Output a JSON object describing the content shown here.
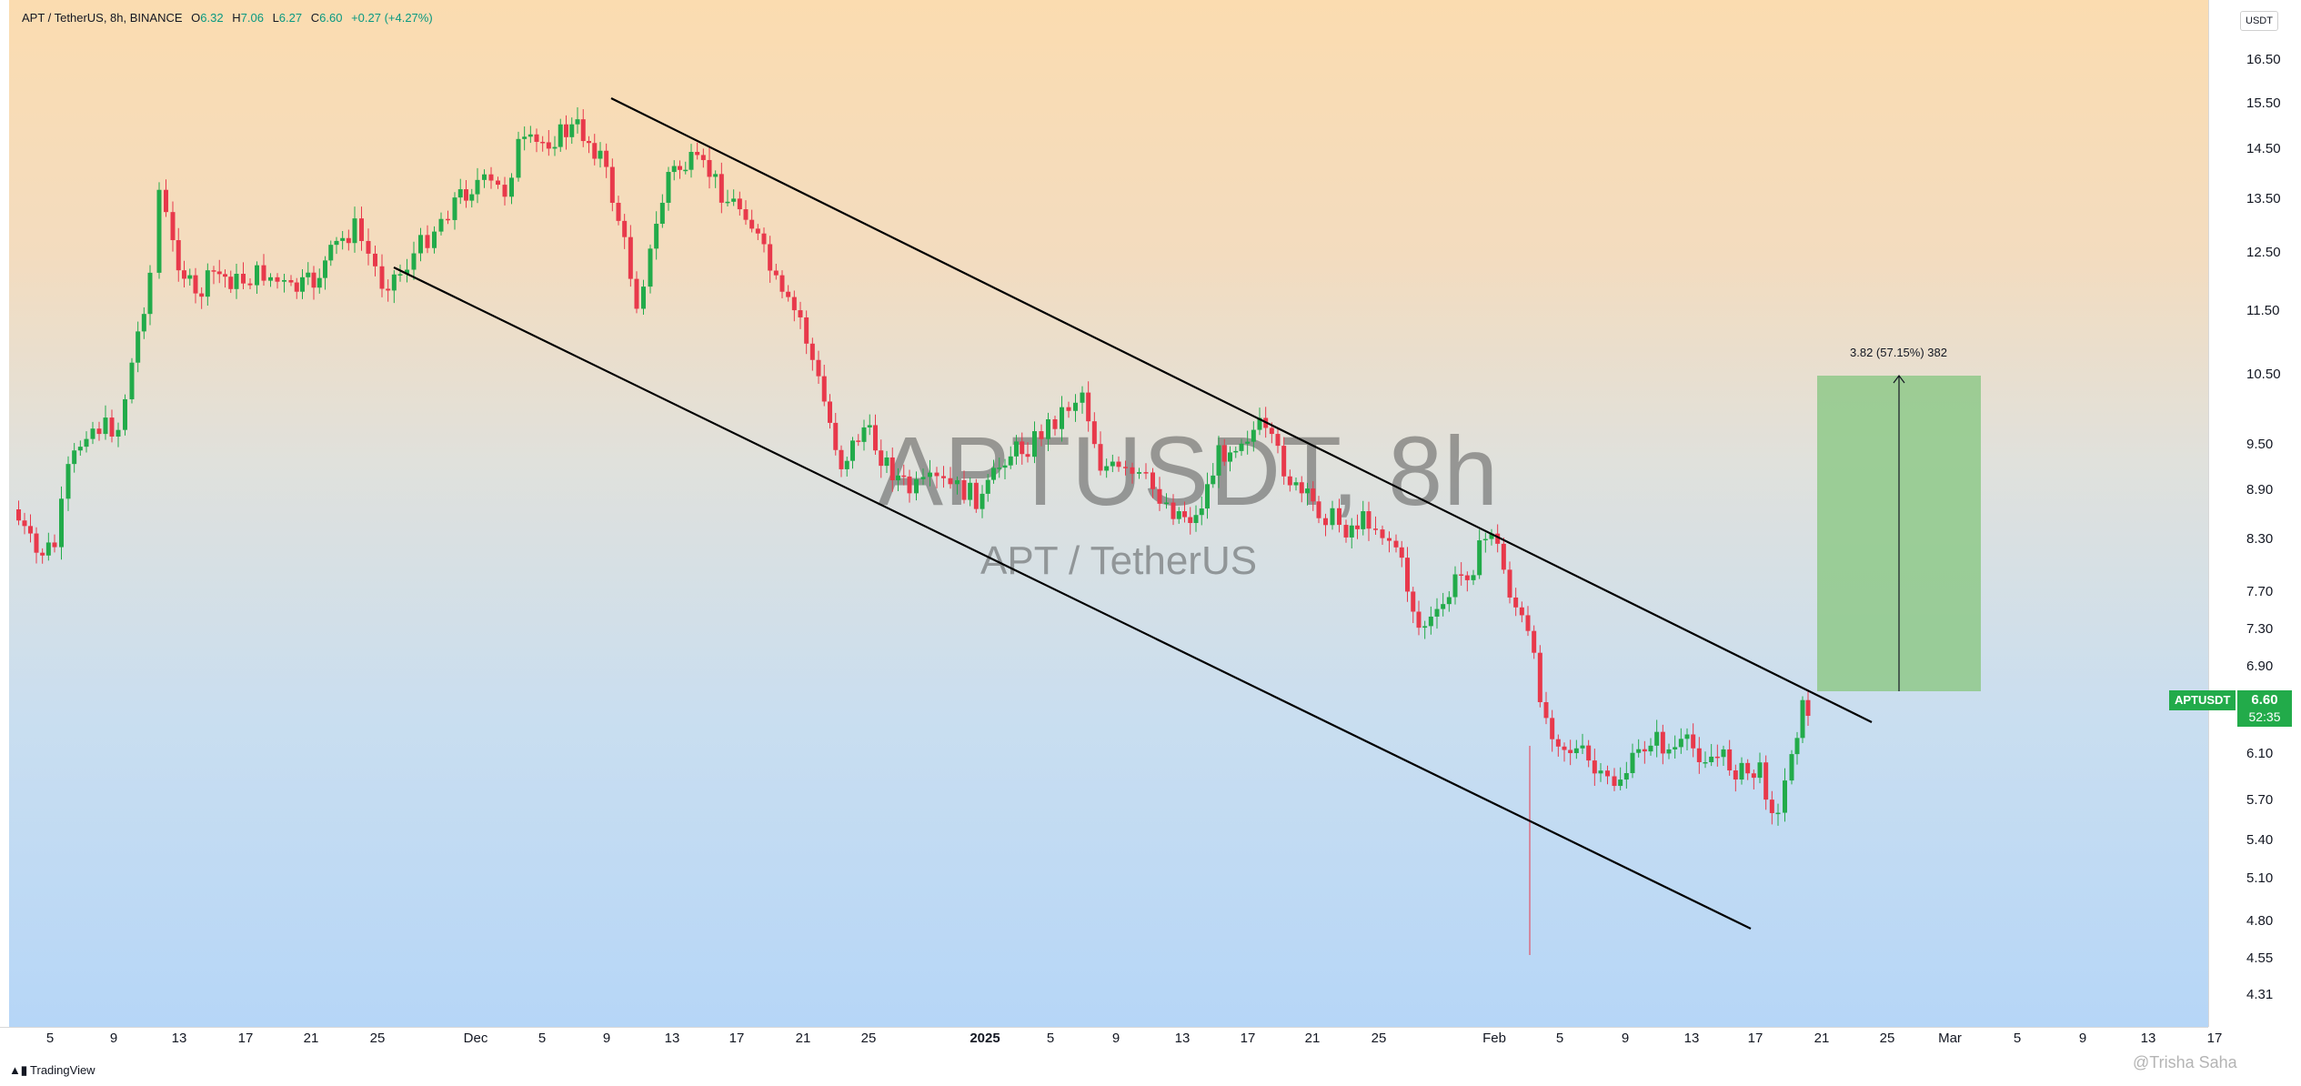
{
  "header": {
    "symbol_desc": "APT / TetherUS, 8h, BINANCE",
    "o_label": "O",
    "o_value": "6.32",
    "h_label": "H",
    "h_value": "7.06",
    "l_label": "L",
    "l_value": "6.27",
    "c_label": "C",
    "c_value": "6.60",
    "change": "+0.27 (+4.27%)"
  },
  "currency_button": "USDT",
  "watermark": {
    "main": "APTUSDT, 8h",
    "sub": "APT / TetherUS"
  },
  "price_scale": {
    "ticks": [
      "16.50",
      "15.50",
      "14.50",
      "13.50",
      "12.50",
      "11.50",
      "10.50",
      "9.50",
      "8.90",
      "8.30",
      "7.70",
      "7.30",
      "6.90",
      "6.10",
      "5.70",
      "5.40",
      "5.10",
      "4.80",
      "4.55",
      "4.31"
    ]
  },
  "time_scale": {
    "ticks": [
      {
        "label": "5",
        "bold": false
      },
      {
        "label": "9",
        "bold": false
      },
      {
        "label": "13",
        "bold": false
      },
      {
        "label": "17",
        "bold": false
      },
      {
        "label": "21",
        "bold": false
      },
      {
        "label": "25",
        "bold": false
      },
      {
        "label": "Dec",
        "bold": false
      },
      {
        "label": "5",
        "bold": false
      },
      {
        "label": "9",
        "bold": false
      },
      {
        "label": "13",
        "bold": false
      },
      {
        "label": "17",
        "bold": false
      },
      {
        "label": "21",
        "bold": false
      },
      {
        "label": "25",
        "bold": false
      },
      {
        "label": "2025",
        "bold": true
      },
      {
        "label": "5",
        "bold": false
      },
      {
        "label": "9",
        "bold": false
      },
      {
        "label": "13",
        "bold": false
      },
      {
        "label": "17",
        "bold": false
      },
      {
        "label": "21",
        "bold": false
      },
      {
        "label": "25",
        "bold": false
      },
      {
        "label": "Feb",
        "bold": false
      },
      {
        "label": "5",
        "bold": false
      },
      {
        "label": "9",
        "bold": false
      },
      {
        "label": "13",
        "bold": false
      },
      {
        "label": "17",
        "bold": false
      },
      {
        "label": "21",
        "bold": false
      },
      {
        "label": "25",
        "bold": false
      },
      {
        "label": "Mar",
        "bold": false
      },
      {
        "label": "5",
        "bold": false
      },
      {
        "label": "9",
        "bold": false
      },
      {
        "label": "13",
        "bold": false
      },
      {
        "label": "17",
        "bold": false
      }
    ]
  },
  "last_price": {
    "symbol": "APTUSDT",
    "price": "6.60",
    "countdown": "52:35"
  },
  "measure": {
    "label": "3.82 (57.15%) 382"
  },
  "footer": {
    "brand": "TradingView",
    "credit": "@Trisha Saha"
  },
  "colors": {
    "up": "#22ab4a",
    "down": "#e8394b",
    "trendline": "#000000",
    "measure_fill": "#8fc98a",
    "accent": "#089981"
  },
  "icons": {
    "logo": "tradingview-logo-icon"
  }
}
